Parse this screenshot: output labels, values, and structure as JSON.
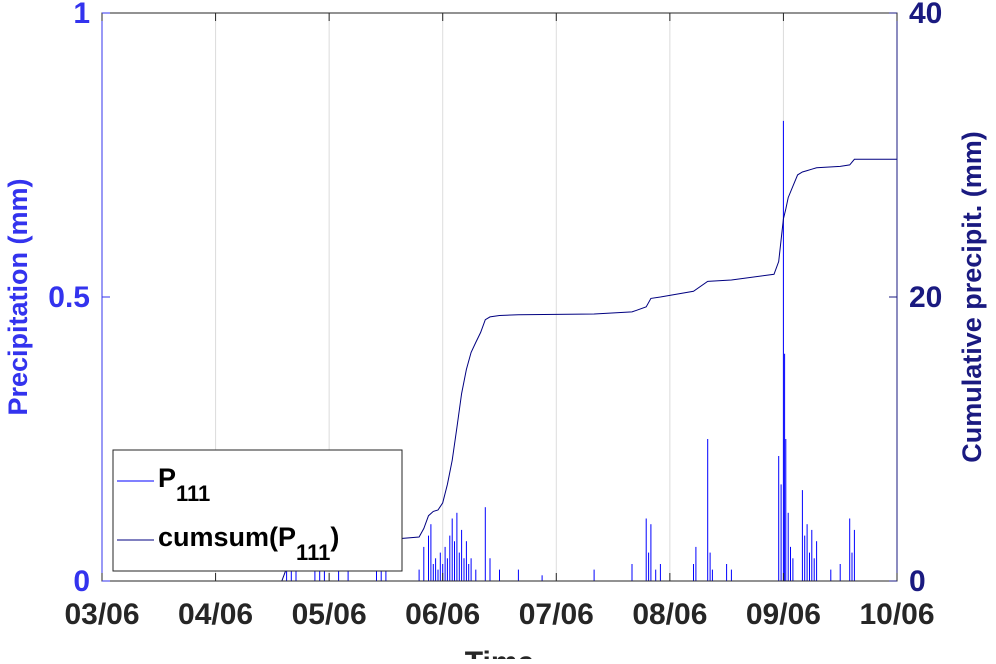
{
  "chart_data": {
    "type": "line",
    "title": "",
    "xlabel": "Time",
    "ylabel_left": "Precipitation (mm)",
    "ylabel_right": "Cumulative precipit. (mm)",
    "x_tick_labels": [
      "03/06",
      "04/06",
      "05/06",
      "06/06",
      "07/06",
      "08/06",
      "09/06",
      "10/06"
    ],
    "xlim": [
      "03/06 00:00",
      "10/06 00:00"
    ],
    "ylim_left": [
      0,
      1
    ],
    "ylim_right": [
      0,
      40
    ],
    "yticks_left": [
      "0",
      "0.5",
      "1"
    ],
    "yticks_right": [
      "0",
      "20",
      "40"
    ],
    "grid_x": true,
    "grid_y": false,
    "legend_position": "lower-left",
    "legend": [
      {
        "base": "P",
        "sub": "111",
        "suffix": ""
      },
      {
        "base": "cumsum(P",
        "sub": "111",
        "suffix": ")"
      }
    ],
    "colors": {
      "left_axis": "#3333ee",
      "right_axis": "#1a1a80",
      "precip_line": "#0000ff",
      "cumsum_line": "#000080",
      "ticks": "#262626",
      "grid": "#dcdcdc"
    },
    "series": [
      {
        "name": "P111",
        "axis": "left",
        "style": "impulse",
        "x": [
          "04/06 15:00",
          "04/06 16:00",
          "04/06 17:00",
          "04/06 21:00",
          "04/06 22:00",
          "04/06 23:00",
          "05/06 02:00",
          "05/06 04:00",
          "05/06 10:00",
          "05/06 11:00",
          "05/06 12:00",
          "05/06 19:00",
          "05/06 20:00",
          "05/06 21:00",
          "05/06 21:30",
          "05/06 22:00",
          "05/06 22:30",
          "05/06 23:00",
          "05/06 23:30",
          "06/06 00:00",
          "06/06 00:30",
          "06/06 01:00",
          "06/06 01:30",
          "06/06 02:00",
          "06/06 02:30",
          "06/06 03:00",
          "06/06 03:30",
          "06/06 04:00",
          "06/06 04:30",
          "06/06 05:00",
          "06/06 05:30",
          "06/06 06:00",
          "06/06 07:00",
          "06/06 09:00",
          "06/06 10:00",
          "06/06 12:00",
          "06/06 16:00",
          "06/06 21:00",
          "07/06 08:00",
          "07/06 16:00",
          "07/06 19:00",
          "07/06 19:30",
          "07/06 20:00",
          "07/06 21:00",
          "07/06 22:00",
          "08/06 05:00",
          "08/06 05:30",
          "08/06 08:00",
          "08/06 08:30",
          "08/06 09:00",
          "08/06 12:00",
          "08/06 13:00",
          "08/06 23:00",
          "08/06 23:30",
          "09/06 00:00",
          "09/06 00:15",
          "09/06 00:30",
          "09/06 01:00",
          "09/06 01:30",
          "09/06 02:00",
          "09/06 04:00",
          "09/06 04:30",
          "09/06 05:00",
          "09/06 05:30",
          "09/06 06:00",
          "09/06 06:30",
          "09/06 07:00",
          "09/06 10:00",
          "09/06 12:00",
          "09/06 14:00",
          "09/06 14:30",
          "09/06 15:00"
        ],
        "values": [
          0.1,
          0.03,
          0.02,
          0.05,
          0.02,
          0.03,
          0.02,
          0.02,
          0.03,
          0.02,
          0.02,
          0.02,
          0.06,
          0.08,
          0.1,
          0.03,
          0.04,
          0.02,
          0.05,
          0.03,
          0.06,
          0.04,
          0.08,
          0.11,
          0.07,
          0.12,
          0.05,
          0.09,
          0.04,
          0.07,
          0.03,
          0.04,
          0.02,
          0.13,
          0.04,
          0.02,
          0.02,
          0.01,
          0.02,
          0.03,
          0.11,
          0.05,
          0.1,
          0.02,
          0.03,
          0.03,
          0.06,
          0.25,
          0.05,
          0.02,
          0.03,
          0.02,
          0.22,
          0.17,
          0.81,
          0.4,
          0.25,
          0.12,
          0.06,
          0.04,
          0.16,
          0.08,
          0.1,
          0.05,
          0.09,
          0.04,
          0.07,
          0.02,
          0.03,
          0.11,
          0.05,
          0.09
        ]
      },
      {
        "name": "cumsum(P111)",
        "axis": "right",
        "style": "line",
        "x": [
          "03/06 00:00",
          "04/06 14:00",
          "04/06 15:00",
          "04/06 17:00",
          "04/06 21:00",
          "05/06 02:00",
          "05/06 10:00",
          "05/06 12:00",
          "05/06 19:00",
          "05/06 20:00",
          "05/06 21:00",
          "05/06 22:00",
          "05/06 23:00",
          "06/06 00:00",
          "06/06 01:00",
          "06/06 02:00",
          "06/06 03:00",
          "06/06 04:00",
          "06/06 05:00",
          "06/06 06:00",
          "06/06 07:00",
          "06/06 08:00",
          "06/06 09:00",
          "06/06 10:00",
          "06/06 12:00",
          "06/06 16:00",
          "07/06 08:00",
          "07/06 16:00",
          "07/06 19:00",
          "07/06 20:00",
          "07/06 22:00",
          "08/06 05:00",
          "08/06 08:00",
          "08/06 13:00",
          "08/06 22:00",
          "08/06 23:00",
          "09/06 00:00",
          "09/06 00:30",
          "09/06 01:00",
          "09/06 02:00",
          "09/06 03:00",
          "09/06 04:00",
          "09/06 05:00",
          "09/06 06:00",
          "09/06 07:00",
          "09/06 12:00",
          "09/06 14:00",
          "09/06 15:00",
          "10/06 00:00"
        ],
        "values": [
          0.0,
          0.0,
          0.9,
          1.6,
          1.9,
          2.3,
          2.6,
          2.9,
          3.1,
          3.7,
          4.6,
          4.9,
          5.0,
          5.5,
          6.8,
          8.5,
          10.8,
          13.2,
          14.9,
          16.1,
          16.8,
          17.5,
          18.4,
          18.6,
          18.7,
          18.75,
          18.8,
          18.95,
          19.3,
          19.9,
          20.0,
          20.4,
          21.1,
          21.2,
          21.6,
          22.5,
          25.5,
          26.2,
          27.0,
          27.8,
          28.6,
          28.8,
          28.9,
          29.0,
          29.1,
          29.2,
          29.3,
          29.7,
          29.7
        ]
      }
    ]
  }
}
